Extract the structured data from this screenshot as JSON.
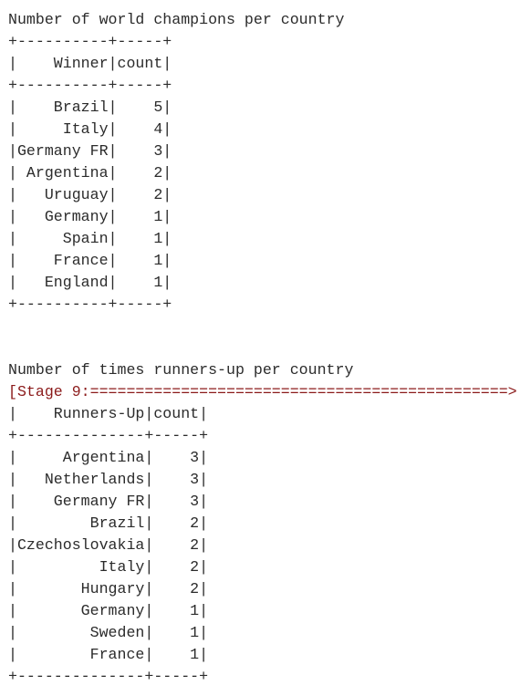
{
  "sections": [
    {
      "title": "Number of world champions per country",
      "rule": "+----------+-----+",
      "separator": "|",
      "columns": [
        "Winner",
        "count"
      ],
      "rows": [
        [
          "Brazil",
          5
        ],
        [
          "Italy",
          4
        ],
        [
          "Germany FR",
          3
        ],
        [
          "Argentina",
          2
        ],
        [
          "Uruguay",
          2
        ],
        [
          "Germany",
          1
        ],
        [
          "Spain",
          1
        ],
        [
          "France",
          1
        ],
        [
          "England",
          1
        ]
      ]
    },
    {
      "title": "Number of times runners-up per country",
      "status": "[Stage 9:==============================================>",
      "rule": "+--------------+-----+",
      "separator": "|",
      "columns": [
        "Runners-Up",
        "count"
      ],
      "rows": [
        [
          "Argentina",
          3
        ],
        [
          "Netherlands",
          3
        ],
        [
          "Germany FR",
          3
        ],
        [
          "Brazil",
          2
        ],
        [
          "Czechoslovakia",
          2
        ],
        [
          "Italy",
          2
        ],
        [
          "Hungary",
          2
        ],
        [
          "Germany",
          1
        ],
        [
          "Sweden",
          1
        ],
        [
          "France",
          1
        ]
      ]
    }
  ]
}
